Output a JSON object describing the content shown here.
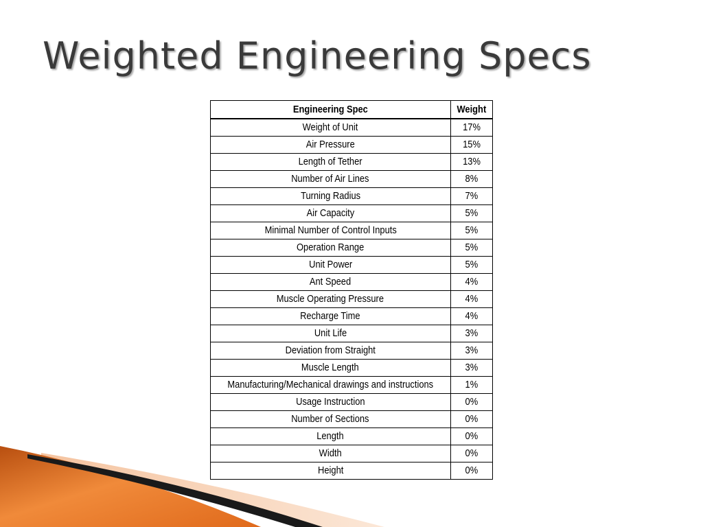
{
  "slide": {
    "title": "Weighted Engineering Specs"
  },
  "table": {
    "headers": {
      "spec": "Engineering Spec",
      "weight": "Weight"
    },
    "rows": [
      {
        "spec": "Weight of Unit",
        "weight": "17%"
      },
      {
        "spec": "Air Pressure",
        "weight": "15%"
      },
      {
        "spec": "Length of Tether",
        "weight": "13%"
      },
      {
        "spec": "Number of Air Lines",
        "weight": "8%"
      },
      {
        "spec": "Turning Radius",
        "weight": "7%"
      },
      {
        "spec": "Air Capacity",
        "weight": "5%"
      },
      {
        "spec": "Minimal Number of Control Inputs",
        "weight": "5%"
      },
      {
        "spec": "Operation Range",
        "weight": "5%"
      },
      {
        "spec": "Unit Power",
        "weight": "5%"
      },
      {
        "spec": "Ant Speed",
        "weight": "4%"
      },
      {
        "spec": "Muscle Operating Pressure",
        "weight": "4%"
      },
      {
        "spec": "Recharge Time",
        "weight": "4%"
      },
      {
        "spec": "Unit Life",
        "weight": "3%"
      },
      {
        "spec": "Deviation from Straight",
        "weight": "3%"
      },
      {
        "spec": "Muscle Length",
        "weight": "3%"
      },
      {
        "spec": "Manufacturing/Mechanical drawings and instructions",
        "weight": "1%"
      },
      {
        "spec": "Usage Instruction",
        "weight": "0%"
      },
      {
        "spec": "Number of Sections",
        "weight": "0%"
      },
      {
        "spec": "Length",
        "weight": "0%"
      },
      {
        "spec": "Width",
        "weight": "0%"
      },
      {
        "spec": "Height",
        "weight": "0%"
      }
    ]
  },
  "colors": {
    "background": "#ffffff",
    "title_text": "#3a3a3a",
    "accent_orange": "#e8782a",
    "accent_light": "#f6c9a4",
    "accent_dark": "#1a1a1a"
  }
}
